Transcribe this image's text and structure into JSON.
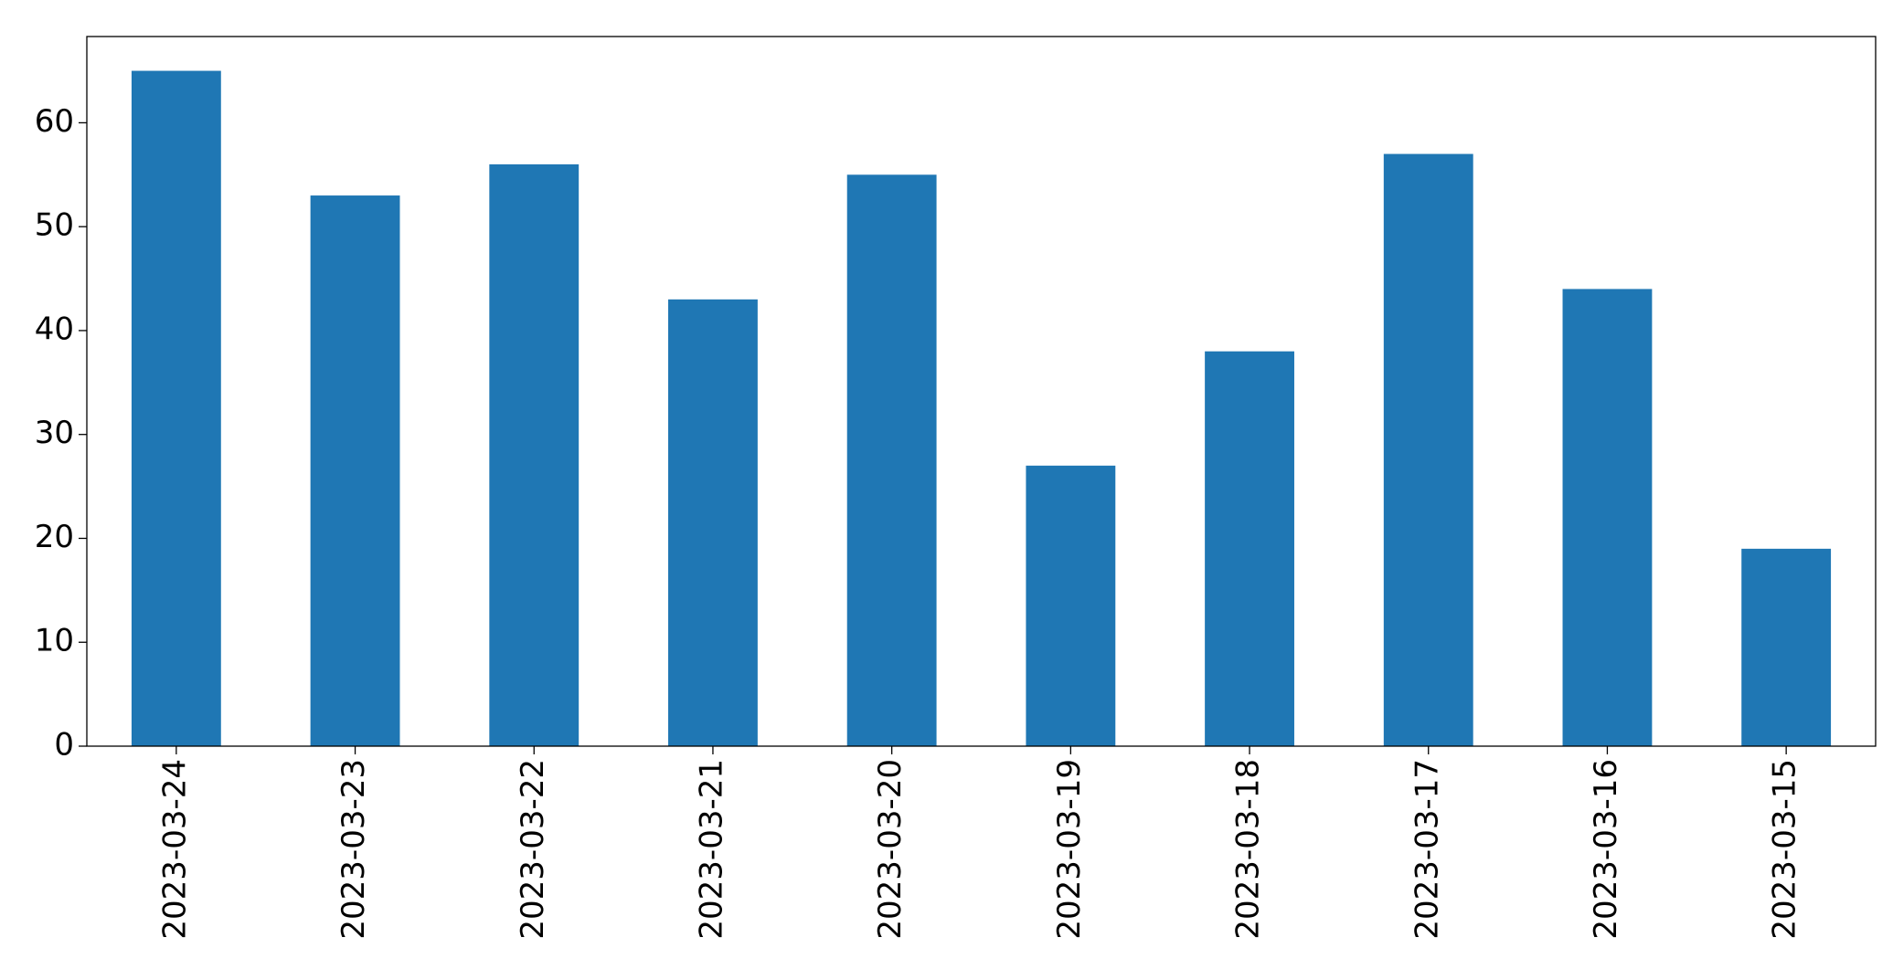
{
  "chart_data": {
    "type": "bar",
    "categories": [
      "2023-03-24",
      "2023-03-23",
      "2023-03-22",
      "2023-03-21",
      "2023-03-20",
      "2023-03-19",
      "2023-03-18",
      "2023-03-17",
      "2023-03-16",
      "2023-03-15"
    ],
    "values": [
      65,
      53,
      56,
      43,
      55,
      27,
      38,
      57,
      44,
      19
    ],
    "color": "#1f77b4",
    "ylim": [
      0,
      68.3
    ],
    "yticks": [
      0,
      10,
      20,
      30,
      40,
      50,
      60
    ],
    "grid": false
  }
}
